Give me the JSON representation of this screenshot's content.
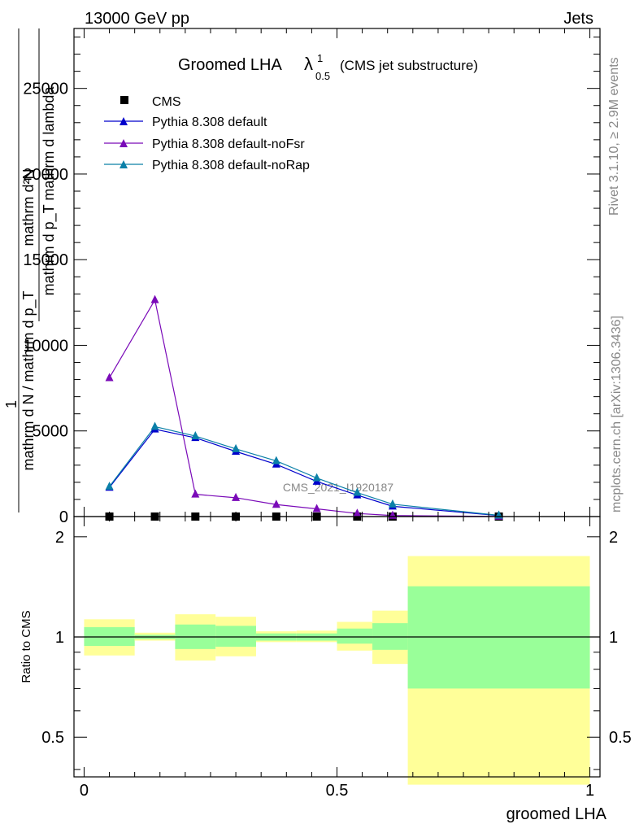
{
  "header": {
    "left": "13000 GeV pp",
    "right": "Jets"
  },
  "title": {
    "main": "Groomed LHA",
    "lambda": "λ",
    "sup": "1",
    "sub": "0.5",
    "note": "(CMS jet substructure)"
  },
  "side": {
    "rivet": "Rivet 3.1.10, ≥ 2.9M events",
    "mcplots": "mcplots.cern.ch [arXiv:1306.3436]"
  },
  "watermark": "CMS_2021_I1920187",
  "axes": {
    "xlabel": "groomed LHA",
    "ylabel_top_num": "mathrm d²N",
    "ylabel_top_den": "mathrm d p_T mathrm d lambda",
    "ylabel_one": "1",
    "ylabel_bot": "mathrm d N / mathrm d p_T",
    "ratio_label": "Ratio to CMS",
    "xticks": [
      "0",
      "0.5",
      "1"
    ],
    "yticks_main": [
      "0",
      "5000",
      "10000",
      "15000",
      "20000",
      "25000"
    ],
    "yticks_ratio": [
      "0.5",
      "1",
      "2"
    ]
  },
  "chart_data": [
    {
      "type": "line",
      "panel": "main",
      "xlim": [
        -0.02,
        1.02
      ],
      "ylim": [
        0,
        28500
      ],
      "series": [
        {
          "name": "CMS",
          "marker": "square",
          "color": "#000000",
          "x": [
            0.05,
            0.14,
            0.22,
            0.3,
            0.38,
            0.46,
            0.54,
            0.61,
            0.82
          ],
          "y": [
            0,
            0,
            0,
            0,
            0,
            0,
            0,
            0,
            0
          ]
        },
        {
          "name": "Pythia 8.308 default",
          "marker": "triangle",
          "color": "#0000cc",
          "x": [
            0.05,
            0.14,
            0.22,
            0.3,
            0.38,
            0.46,
            0.54,
            0.61,
            0.82
          ],
          "y": [
            1700,
            5100,
            4600,
            3800,
            3050,
            2050,
            1250,
            600,
            60
          ]
        },
        {
          "name": "Pythia 8.308 default-noFsr",
          "marker": "triangle",
          "color": "#7a0ab8",
          "x": [
            0.05,
            0.14,
            0.22,
            0.3,
            0.38,
            0.46,
            0.54,
            0.61,
            0.82
          ],
          "y": [
            8100,
            12650,
            1300,
            1100,
            700,
            450,
            180,
            60,
            10
          ]
        },
        {
          "name": "Pythia 8.308 default-noRap",
          "marker": "triangle",
          "color": "#0b80a8",
          "x": [
            0.05,
            0.14,
            0.22,
            0.3,
            0.38,
            0.46,
            0.54,
            0.61,
            0.82
          ],
          "y": [
            1750,
            5250,
            4700,
            3950,
            3250,
            2250,
            1400,
            720,
            70
          ]
        }
      ]
    },
    {
      "type": "area",
      "panel": "ratio",
      "title": "Ratio to CMS",
      "ylim": [
        0.38,
        2.3
      ],
      "yscale": "log",
      "reference": 1.0,
      "bins": [
        {
          "x0": 0.0,
          "x1": 0.1,
          "stat": [
            0.94,
            1.07
          ],
          "total": [
            0.88,
            1.13
          ]
        },
        {
          "x0": 0.1,
          "x1": 0.18,
          "stat": [
            0.985,
            1.015
          ],
          "total": [
            0.975,
            1.03
          ]
        },
        {
          "x0": 0.18,
          "x1": 0.26,
          "stat": [
            0.92,
            1.09
          ],
          "total": [
            0.85,
            1.17
          ]
        },
        {
          "x0": 0.26,
          "x1": 0.34,
          "stat": [
            0.935,
            1.08
          ],
          "total": [
            0.875,
            1.15
          ]
        },
        {
          "x0": 0.34,
          "x1": 0.42,
          "stat": [
            0.975,
            1.025
          ],
          "total": [
            0.965,
            1.04
          ]
        },
        {
          "x0": 0.42,
          "x1": 0.5,
          "stat": [
            0.975,
            1.025
          ],
          "total": [
            0.965,
            1.045
          ]
        },
        {
          "x0": 0.5,
          "x1": 0.57,
          "stat": [
            0.955,
            1.06
          ],
          "total": [
            0.91,
            1.11
          ]
        },
        {
          "x0": 0.57,
          "x1": 0.64,
          "stat": [
            0.915,
            1.1
          ],
          "total": [
            0.83,
            1.2
          ]
        },
        {
          "x0": 0.64,
          "x1": 1.0,
          "stat": [
            0.7,
            1.42
          ],
          "total": [
            0.36,
            1.75
          ]
        }
      ]
    }
  ]
}
